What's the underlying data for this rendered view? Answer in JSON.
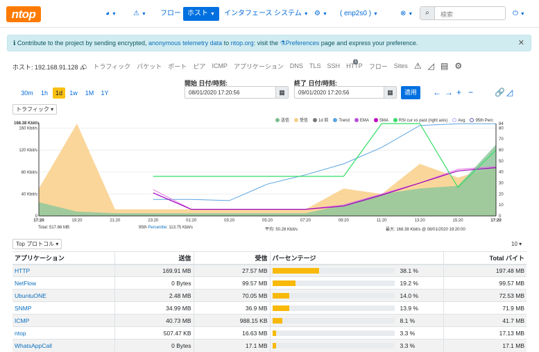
{
  "nav": {
    "logo": "ntop",
    "items": [
      {
        "label": "フロー",
        "active": false
      },
      {
        "label": "ホスト",
        "active": true
      },
      {
        "label": "インタフェース",
        "active": false
      },
      {
        "label": "システム",
        "active": false
      },
      {
        "label": "( enp2s0 )",
        "active": false
      }
    ],
    "search_placeholder": "検索"
  },
  "banner": {
    "prefix": "Contribute to the project by sending encrypted, ",
    "link1": "anonymous telemetry data",
    "mid": " to ",
    "link2": "ntop.org",
    "mid2": ": visit the ",
    "link3": "Preferences",
    "suffix": " page and express your preference."
  },
  "host": {
    "label": "ホスト: 192.168.91.128",
    "links": [
      "トラフィック",
      "パケット",
      "ポート",
      "ピア",
      "ICMP",
      "アプリケーション",
      "DNS",
      "TLS",
      "SSH",
      "HTTP",
      "フロー",
      "Sites"
    ],
    "http_badge": "1"
  },
  "time": {
    "ranges": [
      "30m",
      "1h",
      "1d",
      "1w",
      "1M",
      "1Y"
    ],
    "selected": "1d",
    "start_label": "開始 日付/時刻:",
    "start_value": "08/01/2020 17:20:56",
    "end_label": "終了 日付/時刻:",
    "end_value": "09/01/2020 17:20:56",
    "apply": "適用"
  },
  "traffic_dropdown": "トラフィック",
  "chart_data": {
    "type": "area",
    "ylabel_left": "168.38 Kbit/s",
    "y_ticks_left": [
      "160 Kbit/s",
      "120 Kbit/s",
      "80 Kbit/s",
      "40 Kbit/s",
      "0"
    ],
    "y_ticks_right": [
      "84",
      "80",
      "70",
      "60",
      "50",
      "40",
      "30",
      "20",
      "10",
      "0"
    ],
    "x": [
      "17:20",
      "19:20",
      "21:20",
      "23:20",
      "01:20",
      "03:20",
      "05:20",
      "07:20",
      "09:20",
      "11:20",
      "13:20",
      "15:20",
      "17:20"
    ],
    "ylim_left": [
      0,
      168.38
    ],
    "ylim_right": [
      0,
      84
    ],
    "legend": [
      "送信",
      "受信",
      "1d 前",
      "Trend",
      "EMA",
      "SMA",
      "RSI cur vs past (right axis)",
      "Avg",
      "95th Perc"
    ],
    "legend_colors": [
      "#7dbd8c",
      "#f9cf88",
      "#777777",
      "#5aa3e0",
      "#b64fd8",
      "#c000c0",
      "#33dd66",
      "#aaaaff",
      "#5555aa"
    ],
    "series": [
      {
        "name": "受信",
        "values": [
          50,
          170,
          12,
          12,
          12,
          12,
          12,
          12,
          50,
          40,
          95,
          70,
          90
        ]
      },
      {
        "name": "送信",
        "values": [
          25,
          8,
          5,
          5,
          5,
          5,
          5,
          5,
          20,
          40,
          50,
          55,
          130
        ]
      },
      {
        "name": "Trend",
        "values": [
          null,
          null,
          null,
          30,
          30,
          28,
          58,
          75,
          95,
          125,
          165,
          168,
          168
        ]
      },
      {
        "name": "EMA",
        "values": [
          null,
          null,
          null,
          48,
          12,
          12,
          12,
          12,
          20,
          40,
          60,
          85,
          90
        ]
      },
      {
        "name": "SMA",
        "values": [
          null,
          null,
          null,
          42,
          12,
          12,
          12,
          12,
          18,
          38,
          60,
          82,
          88
        ]
      },
      {
        "name": "RSI cur vs past (right axis)",
        "values": [
          null,
          null,
          null,
          36,
          36,
          36,
          36,
          36,
          36,
          84,
          84,
          26,
          60
        ]
      }
    ],
    "footer": {
      "total": "Total: 517.86 MB",
      "perc": "95th ",
      "perc_link": "Percentile",
      "perc_value": ": 113.75 Kbit/s",
      "avg": "平均: 50.28 Kbit/s",
      "max": "最大: 168.38 Kbit/s @ 08/01/2020 19:20:00"
    }
  },
  "proto": {
    "dropdown": "Top プロトコル",
    "page_size": "10",
    "headers": [
      "アプリケーション",
      "送信",
      "受信",
      "パーセンテージ",
      "Total バイト"
    ],
    "rows": [
      {
        "app": "HTTP",
        "sent": "169.91 MB",
        "rcvd": "27.57 MB",
        "pct": "38.1 %",
        "pct_val": 38.1,
        "total": "197.48 MB"
      },
      {
        "app": "NetFlow",
        "sent": "0 Bytes",
        "rcvd": "99.57 MB",
        "pct": "19.2 %",
        "pct_val": 19.2,
        "total": "99.57 MB"
      },
      {
        "app": "UbuntuONE",
        "sent": "2.48 MB",
        "rcvd": "70.05 MB",
        "pct": "14.0 %",
        "pct_val": 14.0,
        "total": "72.53 MB"
      },
      {
        "app": "SNMP",
        "sent": "34.99 MB",
        "rcvd": "36.9 MB",
        "pct": "13.9 %",
        "pct_val": 13.9,
        "total": "71.9 MB"
      },
      {
        "app": "ICMP",
        "sent": "40.73 MB",
        "rcvd": "988.15 KB",
        "pct": "8.1 %",
        "pct_val": 8.1,
        "total": "41.7 MB"
      },
      {
        "app": "ntop",
        "sent": "507.47 KB",
        "rcvd": "16.63 MB",
        "pct": "3.3 %",
        "pct_val": 3.3,
        "total": "17.13 MB"
      },
      {
        "app": "WhatsAppCall",
        "sent": "0 Bytes",
        "rcvd": "17.1 MB",
        "pct": "3.3 %",
        "pct_val": 3.3,
        "total": "17.1 MB"
      }
    ]
  }
}
